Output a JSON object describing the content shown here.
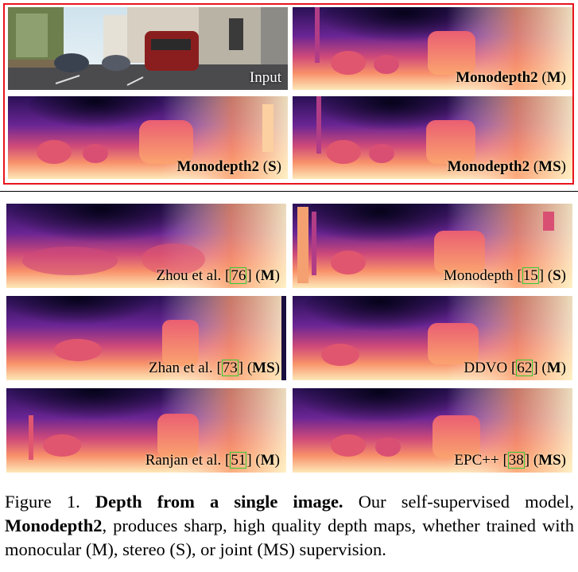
{
  "palette": {
    "dark": "#1a0e3f",
    "mid": "#8a2a8f",
    "warm": "#e8566a",
    "light": "#fde6b4",
    "accent": "#e8141e",
    "cite": "#33cc33"
  },
  "panels": {
    "input": {
      "text": "Input"
    },
    "m": {
      "name": "Monodepth2",
      "tag": "M"
    },
    "s": {
      "name": "Monodepth2",
      "tag": "S"
    },
    "ms": {
      "name": "Monodepth2",
      "tag": "MS"
    },
    "zhou": {
      "name": "Zhou et al.",
      "ref": "76",
      "tag": "M"
    },
    "monodepth": {
      "name": "Monodepth",
      "ref": "15",
      "tag": "S"
    },
    "zhan": {
      "name": "Zhan et al.",
      "ref": "73",
      "tag": "MS"
    },
    "ddvo": {
      "name": "DDVO",
      "ref": "62",
      "tag": "M"
    },
    "ranjan": {
      "name": "Ranjan et al.",
      "ref": "51",
      "tag": "M"
    },
    "epc": {
      "name": "EPC++",
      "ref": "38",
      "tag": "MS"
    }
  },
  "caption": {
    "prefix": "Figure 1.",
    "title": "Depth from a single image.",
    "text1": "Our self-supervised model,",
    "model": "Monodepth2",
    "text2": ", produces sharp, high quality depth maps, whether trained with monocular (M), stereo (S), or joint (MS) supervision."
  }
}
